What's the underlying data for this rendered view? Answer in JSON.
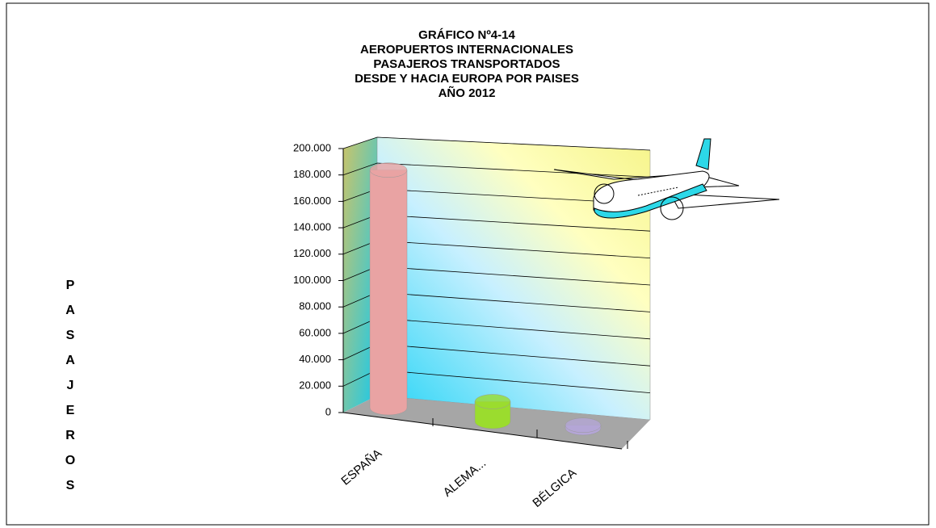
{
  "chart_data": {
    "type": "bar3d",
    "title": [
      "GRÁFICO Nº4-14",
      "AEROPUERTOS INTERNACIONALES",
      "PASAJEROS TRANSPORTADOS",
      "DESDE Y HACIA EUROPA POR PAISES",
      "AÑO 2012"
    ],
    "y_label": "PASAJEROS",
    "categories": [
      "ESPAÑA",
      "ALEMA...",
      "BÉLGICA"
    ],
    "values": [
      180000,
      15000,
      2000
    ],
    "colors": [
      "#e9a3a3",
      "#9bdc2e",
      "#b4a6d6"
    ],
    "ylim": [
      0,
      200000
    ],
    "yticks": [
      0,
      {
        "value": 20000,
        "label": "20.000"
      },
      {
        "value": 40000,
        "label": "40.000"
      },
      {
        "value": 60000,
        "label": "60.000"
      },
      {
        "value": 80000,
        "label": "80.000"
      },
      {
        "value": 100000,
        "label": "100.000"
      },
      {
        "value": 120000,
        "label": "120.000"
      },
      {
        "value": 140000,
        "label": "140.000"
      },
      {
        "value": 160000,
        "label": "160.000"
      },
      {
        "value": 180000,
        "label": "180.000"
      },
      {
        "value": 200000,
        "label": "200.000"
      }
    ],
    "grid": true
  }
}
